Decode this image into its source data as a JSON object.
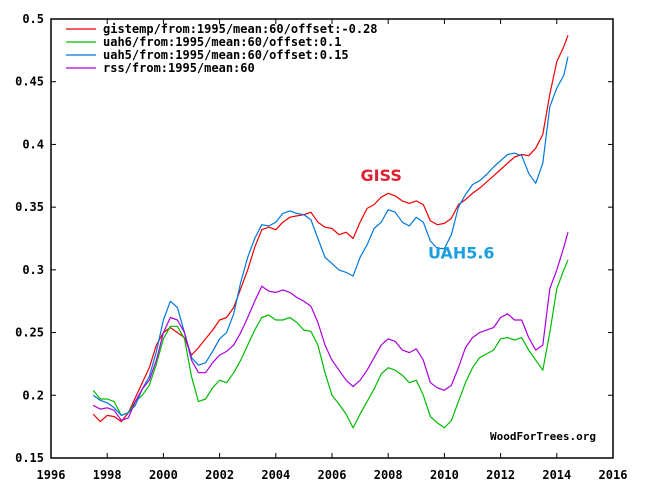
{
  "chart_data": {
    "type": "line",
    "title": "",
    "xlabel": "",
    "ylabel": "",
    "xlim": [
      1996,
      2016
    ],
    "ylim": [
      0.15,
      0.5
    ],
    "xticks": [
      "1996",
      "1998",
      "2000",
      "2002",
      "2004",
      "2006",
      "2008",
      "2010",
      "2012",
      "2014",
      "2016"
    ],
    "yticks": [
      "0.5",
      "0.45",
      "0.4",
      "0.35",
      "0.3",
      "0.25",
      "0.2",
      "0.15"
    ],
    "grid": false,
    "legend_position": "top-left",
    "x": [
      1997.5,
      1997.75,
      1998.0,
      1998.25,
      1998.5,
      1998.75,
      1999.0,
      1999.25,
      1999.5,
      1999.75,
      2000.0,
      2000.25,
      2000.5,
      2000.75,
      2001.0,
      2001.25,
      2001.5,
      2001.75,
      2002.0,
      2002.25,
      2002.5,
      2002.75,
      2003.0,
      2003.25,
      2003.5,
      2003.75,
      2004.0,
      2004.25,
      2004.5,
      2004.75,
      2005.0,
      2005.25,
      2005.5,
      2005.75,
      2006.0,
      2006.25,
      2006.5,
      2006.75,
      2007.0,
      2007.25,
      2007.5,
      2007.75,
      2008.0,
      2008.25,
      2008.5,
      2008.75,
      2009.0,
      2009.25,
      2009.5,
      2009.75,
      2010.0,
      2010.25,
      2010.5,
      2010.75,
      2011.0,
      2011.25,
      2011.5,
      2011.75,
      2012.0,
      2012.25,
      2012.5,
      2012.75,
      2013.0,
      2013.25,
      2013.5,
      2013.75,
      2014.0,
      2014.25,
      2014.4
    ],
    "series": [
      {
        "name": "gistemp/from:1995/mean:60/offset:-0.28",
        "color": "#ee0000",
        "values": [
          0.185,
          0.179,
          0.184,
          0.183,
          0.179,
          0.186,
          0.198,
          0.21,
          0.222,
          0.24,
          0.25,
          0.254,
          0.25,
          0.246,
          0.232,
          0.238,
          0.245,
          0.252,
          0.26,
          0.262,
          0.27,
          0.285,
          0.3,
          0.318,
          0.332,
          0.334,
          0.332,
          0.338,
          0.342,
          0.343,
          0.344,
          0.346,
          0.338,
          0.334,
          0.333,
          0.328,
          0.33,
          0.325,
          0.338,
          0.349,
          0.352,
          0.358,
          0.361,
          0.359,
          0.355,
          0.353,
          0.355,
          0.352,
          0.339,
          0.336,
          0.337,
          0.341,
          0.352,
          0.356,
          0.361,
          0.365,
          0.37,
          0.375,
          0.38,
          0.385,
          0.39,
          0.392,
          0.391,
          0.397,
          0.408,
          0.44,
          0.466,
          0.478,
          0.487
        ]
      },
      {
        "name": "uah6/from:1995/mean:60/offset:0.1",
        "color": "#00bb00",
        "values": [
          0.204,
          0.197,
          0.197,
          0.195,
          0.184,
          0.186,
          0.195,
          0.2,
          0.208,
          0.225,
          0.245,
          0.255,
          0.255,
          0.245,
          0.215,
          0.195,
          0.197,
          0.206,
          0.212,
          0.21,
          0.218,
          0.228,
          0.24,
          0.252,
          0.262,
          0.264,
          0.26,
          0.26,
          0.262,
          0.258,
          0.252,
          0.251,
          0.24,
          0.218,
          0.2,
          0.193,
          0.185,
          0.174,
          0.185,
          0.195,
          0.205,
          0.217,
          0.222,
          0.22,
          0.216,
          0.21,
          0.212,
          0.2,
          0.183,
          0.178,
          0.174,
          0.18,
          0.195,
          0.21,
          0.222,
          0.23,
          0.233,
          0.236,
          0.245,
          0.246,
          0.244,
          0.246,
          0.236,
          0.228,
          0.22,
          0.25,
          0.285,
          0.3,
          0.308
        ]
      },
      {
        "name": "uah5/from:1995/mean:60/offset:0.15",
        "color": "#0077dd",
        "values": [
          0.2,
          0.196,
          0.194,
          0.19,
          0.184,
          0.186,
          0.192,
          0.205,
          0.215,
          0.235,
          0.26,
          0.275,
          0.27,
          0.25,
          0.23,
          0.224,
          0.226,
          0.235,
          0.245,
          0.25,
          0.265,
          0.29,
          0.31,
          0.325,
          0.336,
          0.335,
          0.338,
          0.345,
          0.347,
          0.345,
          0.344,
          0.34,
          0.325,
          0.31,
          0.305,
          0.3,
          0.298,
          0.295,
          0.31,
          0.32,
          0.333,
          0.338,
          0.348,
          0.346,
          0.338,
          0.335,
          0.342,
          0.338,
          0.323,
          0.317,
          0.317,
          0.328,
          0.35,
          0.36,
          0.368,
          0.371,
          0.376,
          0.382,
          0.387,
          0.392,
          0.393,
          0.391,
          0.377,
          0.369,
          0.385,
          0.43,
          0.445,
          0.455,
          0.47
        ]
      },
      {
        "name": "rss/from:1995/mean:60",
        "color": "#aa00dd",
        "values": [
          0.192,
          0.189,
          0.19,
          0.188,
          0.18,
          0.182,
          0.195,
          0.205,
          0.212,
          0.228,
          0.25,
          0.262,
          0.26,
          0.25,
          0.228,
          0.218,
          0.218,
          0.226,
          0.232,
          0.235,
          0.24,
          0.25,
          0.262,
          0.275,
          0.287,
          0.283,
          0.282,
          0.284,
          0.282,
          0.278,
          0.275,
          0.271,
          0.258,
          0.24,
          0.228,
          0.22,
          0.212,
          0.207,
          0.212,
          0.22,
          0.23,
          0.24,
          0.245,
          0.243,
          0.236,
          0.234,
          0.237,
          0.228,
          0.21,
          0.206,
          0.204,
          0.208,
          0.222,
          0.238,
          0.246,
          0.25,
          0.252,
          0.254,
          0.262,
          0.265,
          0.26,
          0.26,
          0.246,
          0.236,
          0.24,
          0.285,
          0.3,
          0.318,
          0.33
        ]
      }
    ],
    "annotations": [
      {
        "text": "GISS",
        "color": "#dd2233",
        "x": 2007.75,
        "y": 0.371
      },
      {
        "text": "UAH5.6",
        "color": "#1a9ee0",
        "x": 2010.6,
        "y": 0.309
      }
    ],
    "credit": "WoodForTrees.org"
  }
}
